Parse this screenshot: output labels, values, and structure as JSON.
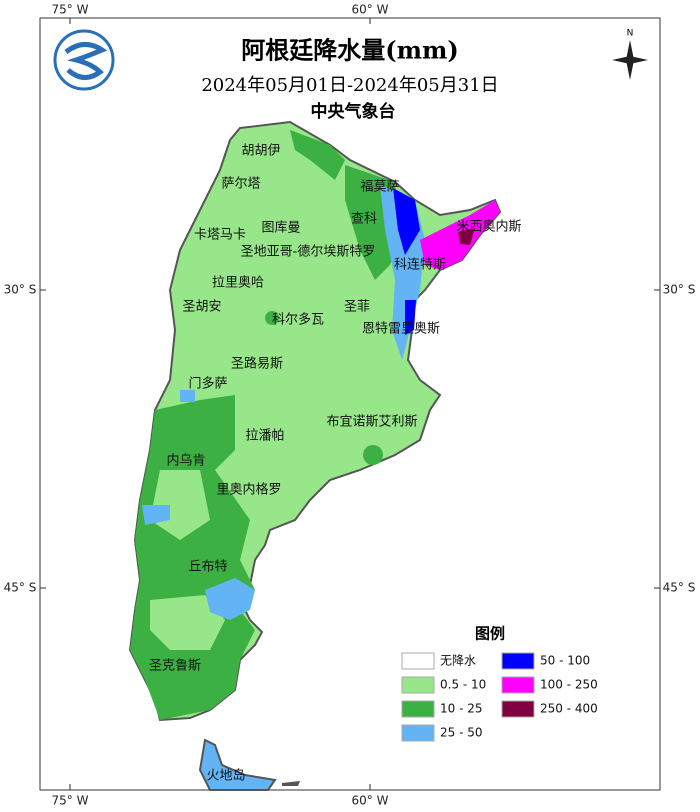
{
  "header": {
    "title": "阿根廷降水量(mm)",
    "subtitle": "2024年05月01日-2024年05月31日",
    "agency": "中央气象台"
  },
  "map": {
    "lon_labels": [
      "75° W",
      "60° W"
    ],
    "lat_labels": [
      "30° S",
      "45° S"
    ],
    "regions": [
      "胡胡伊",
      "萨尔塔",
      "福莫萨",
      "查科",
      "图库曼",
      "卡塔马卡",
      "米西奥内斯",
      "圣地亚哥-德尔埃斯特罗",
      "科连特斯",
      "拉里奥哈",
      "圣胡安",
      "圣菲",
      "科尔多瓦",
      "恩特雷里奥斯",
      "圣路易斯",
      "门多萨",
      "布宜诺斯艾利斯",
      "拉潘帕",
      "内乌肯",
      "里奥内格罗",
      "丘布特",
      "圣克鲁斯",
      "火地岛"
    ]
  },
  "legend": {
    "title": "图例",
    "items": [
      {
        "label": "无降水",
        "color": "#ffffff"
      },
      {
        "label": "0.5 - 10",
        "color": "#98e68a"
      },
      {
        "label": "10 - 25",
        "color": "#3cb043"
      },
      {
        "label": "25 - 50",
        "color": "#62b4f5"
      },
      {
        "label": "50 - 100",
        "color": "#0000ff"
      },
      {
        "label": "100 - 250",
        "color": "#ff00ff"
      },
      {
        "label": "250 - 400",
        "color": "#7f0040"
      }
    ]
  }
}
